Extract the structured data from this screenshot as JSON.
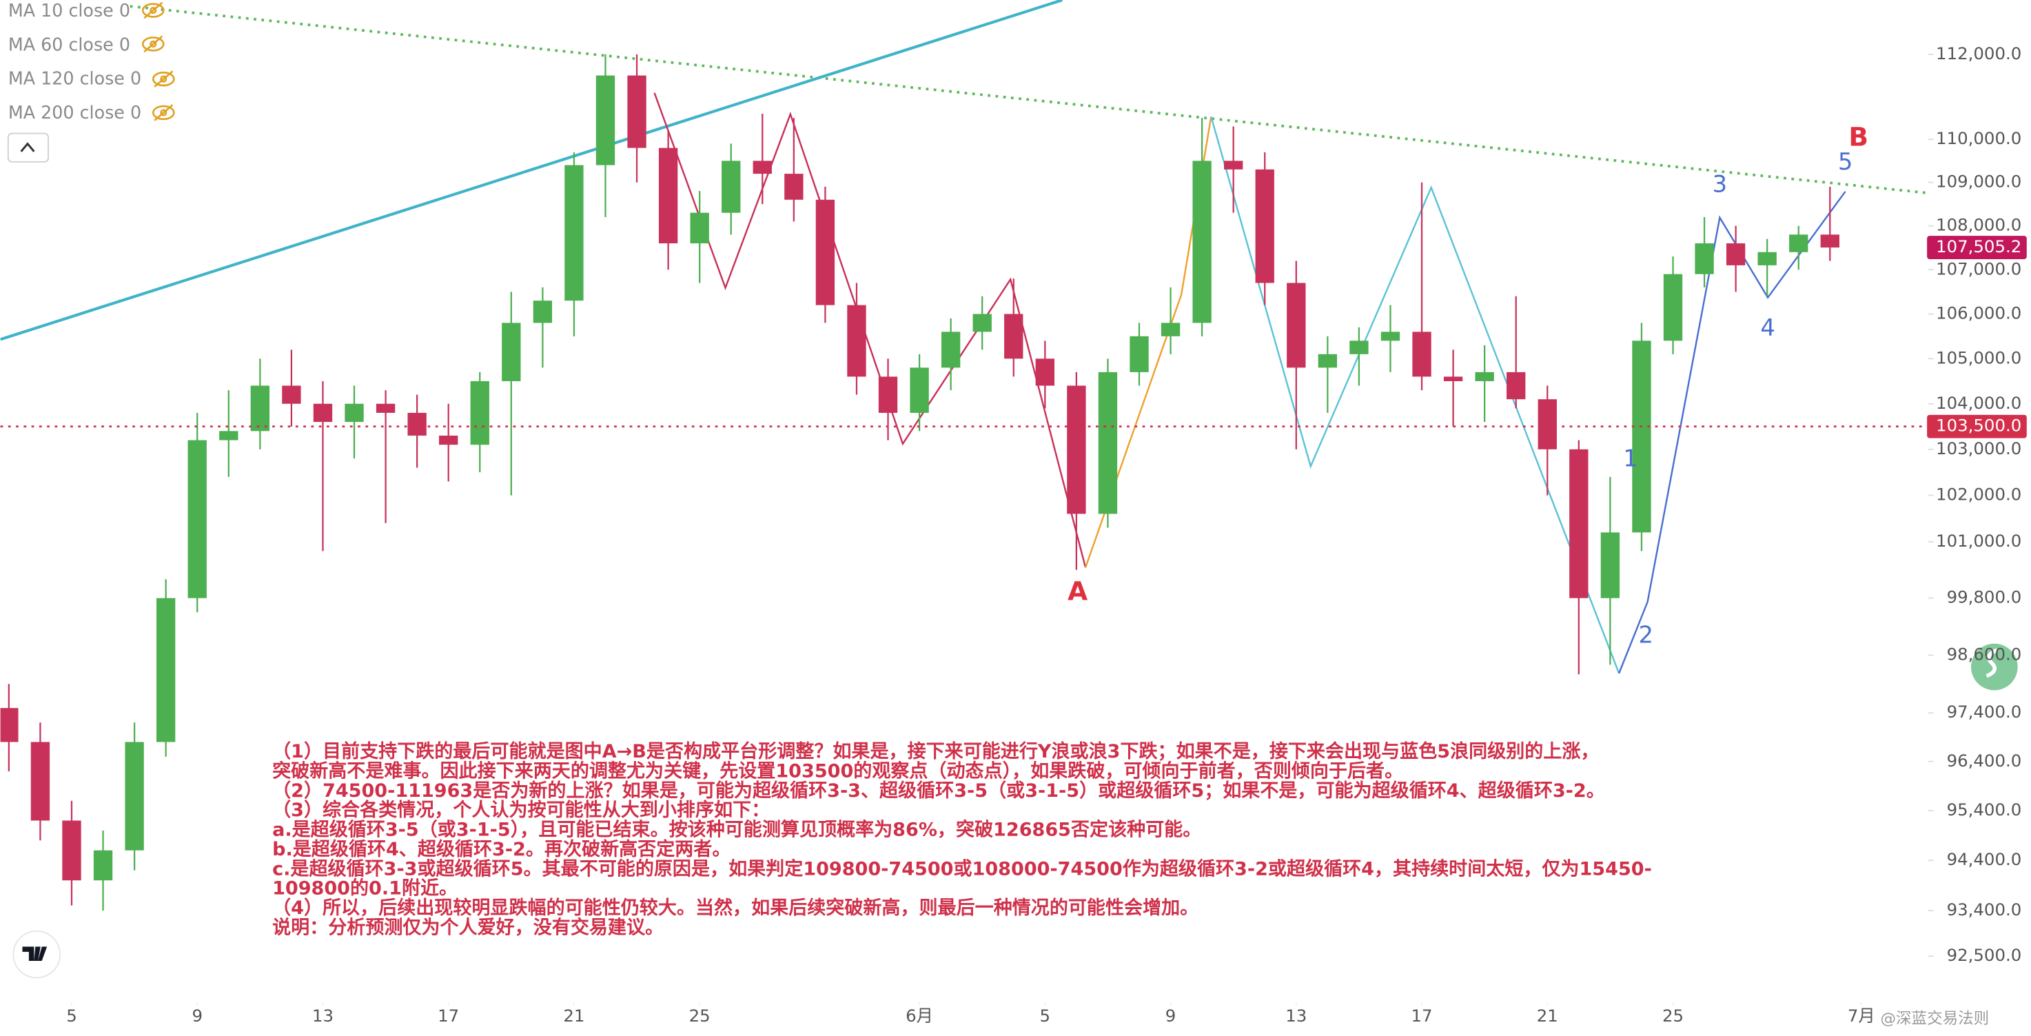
{
  "chart_data": {
    "type": "candlestick",
    "log_scale": true,
    "up_color": "#4caf50",
    "down_color": "#c8325a",
    "x": [
      -2,
      -1,
      0,
      1,
      2,
      3,
      4,
      5,
      6,
      7,
      8,
      9,
      10,
      11,
      12,
      13,
      14,
      15,
      16,
      17,
      18,
      19,
      20,
      21,
      22,
      23,
      24,
      25,
      26,
      27,
      28,
      29,
      30,
      31,
      32,
      33,
      34,
      35,
      36,
      37,
      38,
      39,
      40,
      41,
      42,
      43,
      44,
      45,
      46,
      47,
      48,
      49,
      50,
      51,
      52,
      53,
      54,
      55,
      56
    ],
    "open": [
      97500,
      96800,
      95200,
      94000,
      94600,
      96800,
      99800,
      103200,
      103400,
      104400,
      104000,
      103600,
      104000,
      103800,
      103300,
      103100,
      104500,
      105800,
      106300,
      109400,
      111500,
      109800,
      107600,
      108300,
      109500,
      109200,
      108600,
      106200,
      104600,
      103800,
      104800,
      105600,
      106000,
      105000,
      104400,
      101600,
      104700,
      105500,
      105800,
      109500,
      109300,
      106700,
      104800,
      105100,
      105400,
      105600,
      104600,
      104500,
      104700,
      104100,
      103000,
      99800,
      101200,
      105400,
      106900,
      107600,
      107100,
      107400,
      107800
    ],
    "high": [
      98000,
      97200,
      95600,
      95000,
      97200,
      100200,
      103800,
      104300,
      105000,
      105200,
      104500,
      104400,
      104300,
      104200,
      104000,
      104700,
      106500,
      106600,
      109700,
      112000,
      112000,
      110200,
      108800,
      109900,
      110600,
      110500,
      108900,
      106700,
      105000,
      105100,
      105900,
      106400,
      106800,
      105400,
      104700,
      105000,
      105800,
      106600,
      110500,
      110300,
      109700,
      107200,
      105500,
      105700,
      106200,
      109000,
      105200,
      105300,
      106400,
      104400,
      103200,
      102400,
      105800,
      107300,
      108200,
      108000,
      107700,
      108000,
      108900
    ],
    "low": [
      96200,
      94800,
      93500,
      93400,
      94200,
      96500,
      99500,
      102400,
      103000,
      103500,
      100800,
      102800,
      101400,
      102600,
      102300,
      102500,
      102000,
      104800,
      105500,
      108200,
      109000,
      107000,
      106700,
      107800,
      108500,
      108100,
      105800,
      104200,
      103200,
      103400,
      104300,
      105200,
      104600,
      103900,
      100400,
      101300,
      104400,
      105100,
      105500,
      108300,
      106200,
      103000,
      103800,
      104400,
      104700,
      104300,
      103500,
      103600,
      103900,
      102000,
      98200,
      98400,
      100800,
      105100,
      106600,
      106500,
      106400,
      107000,
      107200
    ],
    "close": [
      96800,
      95200,
      94000,
      94600,
      96800,
      99800,
      103200,
      103400,
      104400,
      104000,
      103600,
      104000,
      103800,
      103300,
      103100,
      104500,
      105800,
      106300,
      109400,
      111500,
      109800,
      107600,
      108300,
      109500,
      109200,
      108600,
      106200,
      104600,
      103800,
      104800,
      105600,
      106000,
      105000,
      104400,
      101600,
      104700,
      105500,
      105800,
      109500,
      109300,
      106700,
      104800,
      105100,
      105400,
      105600,
      104600,
      104500,
      104700,
      104100,
      103000,
      99800,
      101200,
      105400,
      106900,
      107600,
      107100,
      107400,
      107800,
      107505.2
    ],
    "xlim": [
      -2.27,
      59.05
    ],
    "ylim": [
      91700,
      113300
    ],
    "xticks": [
      {
        "value": 0,
        "label": "5"
      },
      {
        "value": 4,
        "label": "9"
      },
      {
        "value": 8,
        "label": "13"
      },
      {
        "value": 12,
        "label": "17"
      },
      {
        "value": 16,
        "label": "21"
      },
      {
        "value": 20,
        "label": "25"
      },
      {
        "value": 27,
        "label": "6月"
      },
      {
        "value": 31,
        "label": "5"
      },
      {
        "value": 35,
        "label": "9"
      },
      {
        "value": 39,
        "label": "13"
      },
      {
        "value": 43,
        "label": "17"
      },
      {
        "value": 47,
        "label": "21"
      },
      {
        "value": 51,
        "label": "25"
      },
      {
        "value": 57,
        "label": "7月"
      }
    ],
    "yticks": [
      {
        "value": 112000,
        "label": "112,000.0"
      },
      {
        "value": 110000,
        "label": "110,000.0"
      },
      {
        "value": 109000,
        "label": "109,000.0"
      },
      {
        "value": 108000,
        "label": "108,000.0"
      },
      {
        "value": 107000,
        "label": "107,000.0"
      },
      {
        "value": 106000,
        "label": "106,000.0"
      },
      {
        "value": 105000,
        "label": "105,000.0"
      },
      {
        "value": 104000,
        "label": "104,000.0"
      },
      {
        "value": 103000,
        "label": "103,000.0"
      },
      {
        "value": 102000,
        "label": "102,000.0"
      },
      {
        "value": 101000,
        "label": "101,000.0"
      },
      {
        "value": 99800,
        "label": "99,800.0"
      },
      {
        "value": 98600,
        "label": "98,600.0"
      },
      {
        "value": 97400,
        "label": "97,400.0"
      },
      {
        "value": 96400,
        "label": "96,400.0"
      },
      {
        "value": 95400,
        "label": "95,400.0"
      },
      {
        "value": 94400,
        "label": "94,400.0"
      },
      {
        "value": 93400,
        "label": "93,400.0"
      },
      {
        "value": 92500,
        "label": "92,500.0"
      }
    ],
    "indicators": [
      "MA 10 close 0",
      "MA 60 close 0",
      "MA 120 close 0",
      "MA 200 close 0"
    ],
    "drawings": [
      {
        "color": "#5cb85c",
        "style": "dotted",
        "x": [
          1.86,
          59.05
        ],
        "y": [
          113150,
          108760
        ]
      },
      {
        "color": "#3fb3c8",
        "style": "solid",
        "x": [
          -2.27,
          31.55
        ],
        "y": [
          105430,
          113300
        ]
      },
      {
        "color": "#c8325a",
        "style": "solid",
        "x": [
          18.56,
          20.82,
          22.89,
          26.47,
          29.9,
          32.29
        ],
        "y": [
          111090,
          106590,
          110590,
          103120,
          106780,
          100450
        ]
      },
      {
        "color": "#f0a030",
        "style": "solid",
        "x": [
          32.29,
          35.34,
          36.29
        ],
        "y": [
          100450,
          106430,
          110530
        ]
      },
      {
        "color": "#5bc3d8",
        "style": "solid",
        "x": [
          36.29,
          39.46,
          43.3,
          49.28
        ],
        "y": [
          110530,
          102630,
          108880,
          98220
        ]
      },
      {
        "color": "#4a6fd0",
        "style": "solid",
        "x": [
          49.28,
          50.19,
          52.49,
          54.02,
          56.49
        ],
        "y": [
          98220,
          99720,
          108190,
          106370,
          108790
        ]
      }
    ],
    "wave_labels": [
      {
        "label": "A",
        "x": 32.04,
        "y": 99910,
        "color": "#e03040"
      },
      {
        "label": "B",
        "x": 56.91,
        "y": 110020,
        "color": "#e03040"
      },
      {
        "label": "1",
        "x": 49.65,
        "y": 102770,
        "color": "#4a6fd0"
      },
      {
        "label": "2",
        "x": 50.14,
        "y": 99000,
        "color": "#4a6fd0"
      },
      {
        "label": "3",
        "x": 52.49,
        "y": 108930,
        "color": "#4a6fd0"
      },
      {
        "label": "4",
        "x": 54.02,
        "y": 105660,
        "color": "#4a6fd0"
      },
      {
        "label": "5",
        "x": 56.49,
        "y": 109450,
        "color": "#4a6fd0"
      }
    ],
    "price_lines": [
      {
        "value": 103500,
        "label": "103,500.0",
        "color": "#d32f4a"
      }
    ],
    "last_price": {
      "value": 107505.2,
      "label": "107,505.2",
      "color": "#c2185b"
    },
    "note": [
      "（1）目前支持下跌的最后可能就是图中A→B是否构成平台形调整？如果是，接下来可能进行Y浪或浪3下跌；如果不是，接下来会出现与蓝色5浪同级别的上涨，",
      "突破新高不是难事。因此接下来两天的调整尤为关键，先设置103500的观察点（动态点），如果跌破，可倾向于前者，否则倾向于后者。",
      "（2）74500-111963是否为新的上涨？如果是，可能为超级循环3-3、超级循环3-5（或3-1-5）或超级循环5；如果不是，可能为超级循环4、超级循环3-2。",
      "（3）综合各类情况，个人认为按可能性从大到小排序如下：",
      "a.是超级循环3-5（或3-1-5），且可能已结束。按该种可能测算见顶概率为86%，突破126865否定该种可能。",
      "b.是超级循环4、超级循环3-2。再次破新高否定两者。",
      "c.是超级循环3-3或超级循环5。其最不可能的原因是，如果判定109800-74500或108000-74500作为超级循环3-2或超级循环4，其持续时间太短，仅为15450-",
      "109800的0.1附近。",
      "（4）所以，后续出现较明显跌幅的可能性仍较大。当然，如果后续突破新高，则最后一种情况的可能性会增加。",
      "说明：分析预测仅为个人爱好，没有交易建议。"
    ],
    "watermark": "@深蓝交易法则"
  }
}
